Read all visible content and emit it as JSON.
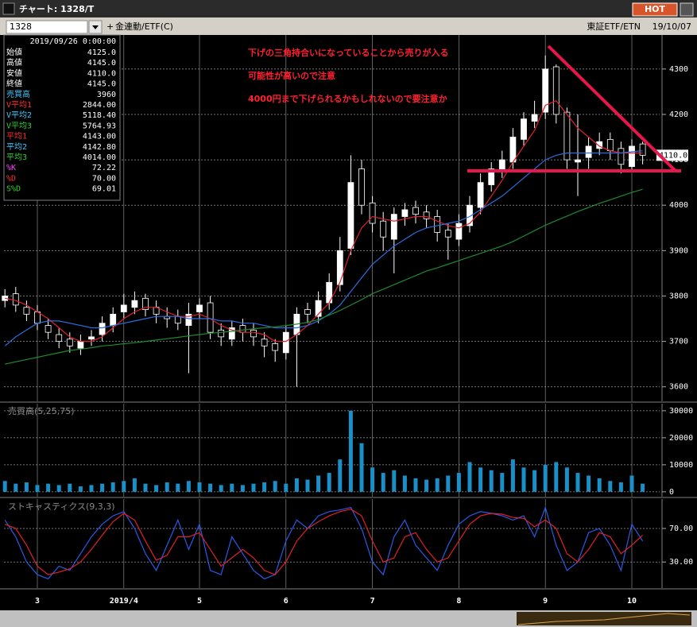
{
  "window": {
    "title": "チャート: 1328/T",
    "hot": "HOT"
  },
  "toolbar": {
    "code": "1328",
    "name": "金連動/ETF(C)",
    "market": "東証ETF/ETN",
    "date": "19/10/07"
  },
  "info": {
    "date": "2019/09/26 0:00:00",
    "rows": [
      {
        "label": "始値",
        "value": "4125.0",
        "color": "#ffffff"
      },
      {
        "label": "高値",
        "value": "4145.0",
        "color": "#ffffff"
      },
      {
        "label": "安値",
        "value": "4110.0",
        "color": "#ffffff"
      },
      {
        "label": "終値",
        "value": "4145.0",
        "color": "#ffffff"
      },
      {
        "label": "売買高",
        "value": "3960",
        "color": "#40c8ff"
      },
      {
        "label": "V平均1",
        "value": "2844.00",
        "color": "#ff3030"
      },
      {
        "label": "V平均2",
        "value": "5118.40",
        "color": "#40c8ff"
      },
      {
        "label": "V平均3",
        "value": "5764.93",
        "color": "#30d030"
      },
      {
        "label": "平均1",
        "value": "4143.00",
        "color": "#ff3030"
      },
      {
        "label": "平均2",
        "value": "4142.80",
        "color": "#40c8ff"
      },
      {
        "label": "平均3",
        "value": "4014.00",
        "color": "#30d030"
      },
      {
        "label": "%K",
        "value": "72.22",
        "color": "#ff40ff"
      },
      {
        "label": "%D",
        "value": "70.00",
        "color": "#ff3030"
      },
      {
        "label": "S%D",
        "value": "69.01",
        "color": "#30d030"
      }
    ]
  },
  "chart_data": [
    {
      "type": "candlestick",
      "annotations": [
        "下げの三角持合いになっていることから売りが入る",
        "可能性が高いので注意",
        "4000円まで下げられるかもしれないので要注意か"
      ],
      "last_price": {
        "value": 4110,
        "label": "4110.0"
      },
      "categories": [
        null,
        null,
        null,
        "3",
        null,
        null,
        null,
        null,
        null,
        null,
        null,
        "2019/4",
        null,
        null,
        null,
        null,
        null,
        null,
        "5",
        null,
        null,
        null,
        null,
        null,
        null,
        null,
        "6",
        null,
        null,
        null,
        null,
        null,
        null,
        null,
        "7",
        null,
        null,
        null,
        null,
        null,
        null,
        null,
        "8",
        null,
        null,
        null,
        null,
        null,
        null,
        null,
        "9",
        null,
        null,
        null,
        null,
        null,
        null,
        null,
        "10",
        null
      ],
      "open": [
        3790,
        3805,
        3775,
        3765,
        3735,
        3715,
        3705,
        3685,
        3705,
        3715,
        3735,
        3765,
        3775,
        3795,
        3775,
        3755,
        3755,
        3735,
        3765,
        3785,
        3725,
        3705,
        3735,
        3725,
        3705,
        3695,
        3675,
        3715,
        3770,
        3755,
        3785,
        3825,
        3905,
        4080,
        4005,
        3965,
        3925,
        3975,
        3995,
        3985,
        3975,
        3945,
        3925,
        3955,
        3995,
        4045,
        4075,
        4095,
        4145,
        4185,
        4205,
        4305,
        4205,
        4095,
        4105,
        4125,
        4145,
        4125,
        4085,
        4135
      ],
      "high": [
        3815,
        3820,
        3790,
        3780,
        3750,
        3730,
        3720,
        3715,
        3725,
        3755,
        3775,
        3805,
        3810,
        3805,
        3790,
        3775,
        3770,
        3785,
        3795,
        3800,
        3740,
        3745,
        3750,
        3740,
        3720,
        3705,
        3735,
        3775,
        3785,
        3810,
        3850,
        3930,
        4110,
        4100,
        4020,
        3985,
        3995,
        4005,
        4010,
        4000,
        3990,
        3960,
        3980,
        4020,
        4070,
        4095,
        4120,
        4170,
        4205,
        4230,
        4330,
        4310,
        4215,
        4200,
        4150,
        4160,
        4160,
        4140,
        4145,
        4140
      ],
      "low": [
        3775,
        3765,
        3745,
        3725,
        3705,
        3685,
        3675,
        3670,
        3690,
        3700,
        3720,
        3750,
        3760,
        3755,
        3740,
        3730,
        3725,
        3630,
        3750,
        3705,
        3690,
        3690,
        3700,
        3690,
        3665,
        3655,
        3660,
        3600,
        3740,
        3740,
        3770,
        3810,
        3890,
        3980,
        3940,
        3900,
        3850,
        3955,
        3960,
        3950,
        3920,
        3880,
        3910,
        3940,
        3980,
        4030,
        4060,
        4080,
        4130,
        4170,
        4190,
        4180,
        4080,
        4020,
        4080,
        4110,
        4100,
        4070,
        4075,
        4090
      ],
      "close": [
        3800,
        3780,
        3760,
        3740,
        3720,
        3700,
        3690,
        3700,
        3710,
        3740,
        3760,
        3780,
        3790,
        3770,
        3760,
        3750,
        3740,
        3760,
        3780,
        3720,
        3710,
        3730,
        3720,
        3710,
        3690,
        3680,
        3720,
        3760,
        3760,
        3790,
        3830,
        3900,
        4050,
        4000,
        3960,
        3930,
        3980,
        3990,
        3980,
        3970,
        3940,
        3930,
        3960,
        4000,
        4050,
        4080,
        4100,
        4150,
        4190,
        4200,
        4300,
        4200,
        4100,
        4100,
        4130,
        4140,
        4120,
        4090,
        4130,
        4110
      ],
      "series": [
        {
          "color": "#e0202a",
          "values": [
            3795,
            3790,
            3780,
            3765,
            3750,
            3730,
            3710,
            3700,
            3700,
            3710,
            3730,
            3750,
            3765,
            3775,
            3775,
            3765,
            3755,
            3755,
            3760,
            3750,
            3735,
            3725,
            3720,
            3720,
            3715,
            3700,
            3700,
            3715,
            3735,
            3760,
            3785,
            3830,
            3900,
            3950,
            3975,
            3970,
            3965,
            3970,
            3975,
            3975,
            3965,
            3955,
            3950,
            3960,
            3985,
            4020,
            4055,
            4095,
            4130,
            4165,
            4220,
            4230,
            4200,
            4170,
            4150,
            4130,
            4120,
            4115,
            4115,
            4115
          ]
        },
        {
          "color": "#2a6ee0",
          "values": [
            3690,
            3710,
            3725,
            3740,
            3745,
            3745,
            3740,
            3735,
            3730,
            3730,
            3735,
            3740,
            3745,
            3750,
            3755,
            3755,
            3755,
            3750,
            3750,
            3750,
            3745,
            3745,
            3740,
            3740,
            3735,
            3730,
            3730,
            3730,
            3735,
            3745,
            3760,
            3780,
            3810,
            3840,
            3870,
            3890,
            3910,
            3925,
            3940,
            3950,
            3955,
            3960,
            3965,
            3975,
            3990,
            4005,
            4020,
            4040,
            4060,
            4080,
            4100,
            4110,
            4115,
            4115,
            4115,
            4115,
            4115,
            4115,
            4118,
            4120
          ]
        },
        {
          "color": "#1f8a2e",
          "values": [
            3650,
            3655,
            3660,
            3665,
            3670,
            3675,
            3680,
            3683,
            3686,
            3690,
            3692,
            3695,
            3697,
            3700,
            3703,
            3706,
            3709,
            3712,
            3715,
            3718,
            3720,
            3722,
            3725,
            3728,
            3730,
            3732,
            3735,
            3738,
            3742,
            3748,
            3758,
            3768,
            3780,
            3792,
            3805,
            3815,
            3825,
            3835,
            3845,
            3855,
            3862,
            3870,
            3878,
            3886,
            3894,
            3902,
            3910,
            3920,
            3932,
            3944,
            3956,
            3966,
            3976,
            3986,
            3995,
            4004,
            4012,
            4020,
            4028,
            4035
          ]
        }
      ],
      "ylim": [
        3568,
        4375
      ],
      "yticks": [
        3600,
        3700,
        3800,
        3900,
        4000,
        4100,
        4200,
        4300
      ],
      "grid": true
    },
    {
      "type": "bar",
      "title": "売買高(5,25,75)",
      "color": "#1a8fc8",
      "values": [
        4000,
        3000,
        3500,
        2500,
        3000,
        2500,
        3000,
        2000,
        2500,
        3000,
        3500,
        4000,
        5000,
        3000,
        2500,
        3500,
        3000,
        4000,
        3500,
        3000,
        2500,
        3000,
        2500,
        3000,
        3500,
        4000,
        3000,
        5000,
        4500,
        6000,
        7000,
        12000,
        30000,
        18000,
        9000,
        7000,
        8000,
        6000,
        5000,
        4500,
        5000,
        6000,
        7000,
        11000,
        9000,
        8000,
        7000,
        12000,
        9000,
        8000,
        10000,
        11000,
        9000,
        7000,
        6000,
        5000,
        4000,
        3500,
        6000,
        3000
      ],
      "ylim": [
        -1800,
        32600
      ],
      "yticks": [
        0,
        10000,
        20000,
        30000
      ],
      "grid": true
    },
    {
      "type": "line",
      "title": "ストキャスティクス(9,3,3)",
      "series": [
        {
          "color": "#2a5ae8",
          "values": [
            80,
            60,
            30,
            15,
            10,
            25,
            20,
            40,
            60,
            75,
            85,
            90,
            70,
            40,
            20,
            50,
            80,
            45,
            75,
            20,
            15,
            60,
            40,
            20,
            10,
            15,
            55,
            80,
            70,
            85,
            90,
            92,
            95,
            70,
            30,
            15,
            60,
            80,
            50,
            35,
            20,
            50,
            75,
            85,
            90,
            88,
            85,
            80,
            85,
            60,
            95,
            50,
            20,
            30,
            65,
            70,
            50,
            20,
            75,
            55
          ]
        },
        {
          "color": "#e0202a",
          "values": [
            75,
            70,
            50,
            25,
            15,
            18,
            22,
            30,
            45,
            62,
            78,
            88,
            80,
            55,
            32,
            38,
            60,
            60,
            65,
            45,
            25,
            35,
            45,
            35,
            20,
            15,
            30,
            55,
            70,
            78,
            85,
            90,
            93,
            85,
            55,
            30,
            35,
            60,
            65,
            45,
            30,
            35,
            55,
            75,
            85,
            88,
            87,
            83,
            82,
            72,
            80,
            70,
            40,
            30,
            45,
            65,
            60,
            40,
            50,
            62
          ]
        }
      ],
      "ylim": [
        -1,
        105
      ],
      "yticks": [
        {
          "value": 30,
          "label": "30.00"
        },
        {
          "value": 70,
          "label": "70.00"
        }
      ],
      "grid": true
    }
  ]
}
